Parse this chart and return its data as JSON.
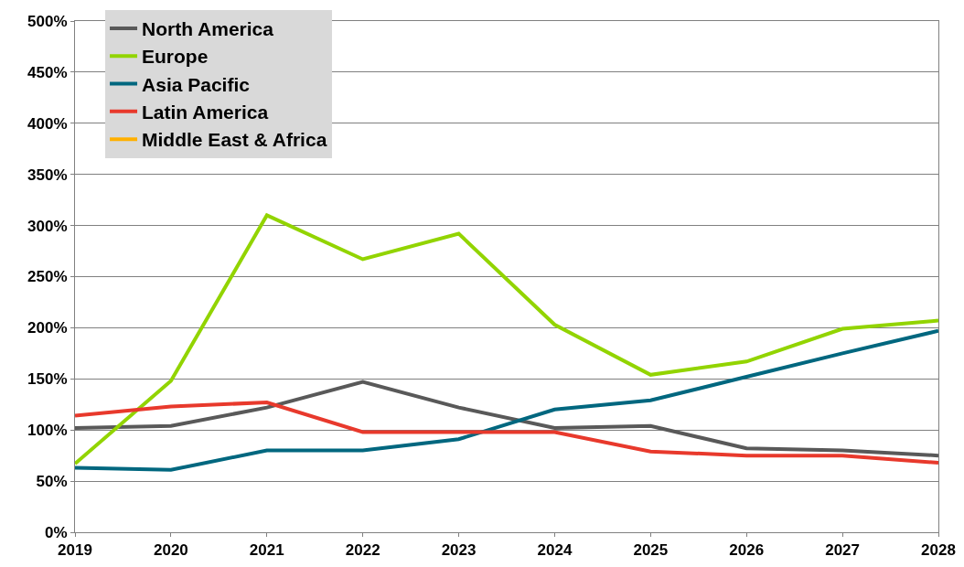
{
  "chart_data": {
    "type": "line",
    "x": [
      2019,
      2020,
      2021,
      2022,
      2023,
      2024,
      2025,
      2026,
      2027,
      2028
    ],
    "series": [
      {
        "name": "North America",
        "color": "#595959",
        "values": [
          102,
          104,
          122,
          147,
          122,
          102,
          104,
          82,
          80,
          75
        ]
      },
      {
        "name": "Europe",
        "color": "#92d400",
        "values": [
          67,
          148,
          310,
          267,
          292,
          203,
          154,
          167,
          199,
          207
        ]
      },
      {
        "name": "Asia Pacific",
        "color": "#00677f",
        "values": [
          63,
          61,
          80,
          80,
          91,
          120,
          129,
          152,
          175,
          197
        ]
      },
      {
        "name": "Latin America",
        "color": "#e8392c",
        "values": [
          114,
          123,
          127,
          98,
          98,
          98,
          79,
          75,
          75,
          68
        ]
      },
      {
        "name": "Middle East & Africa",
        "color": "#ffb000",
        "values": [
          null,
          null,
          null,
          null,
          null,
          null,
          null,
          null,
          null,
          null
        ]
      }
    ],
    "xlim": [
      2019,
      2028
    ],
    "xticks": [
      2019,
      2020,
      2021,
      2022,
      2023,
      2024,
      2025,
      2026,
      2027,
      2028
    ],
    "ylim": [
      0,
      500
    ],
    "yticks": [
      {
        "value": 0,
        "label": "0%"
      },
      {
        "value": 50,
        "label": "50%"
      },
      {
        "value": 100,
        "label": "100%"
      },
      {
        "value": 150,
        "label": "150%"
      },
      {
        "value": 200,
        "label": "200%"
      },
      {
        "value": 250,
        "label": "250%"
      },
      {
        "value": 300,
        "label": "300%"
      },
      {
        "value": 350,
        "label": "350%"
      },
      {
        "value": 400,
        "label": "400%"
      },
      {
        "value": 450,
        "label": "450%"
      },
      {
        "value": 500,
        "label": "500%"
      }
    ],
    "grid": "y",
    "legend": "top left",
    "marker": "none",
    "line_style": "solid"
  }
}
